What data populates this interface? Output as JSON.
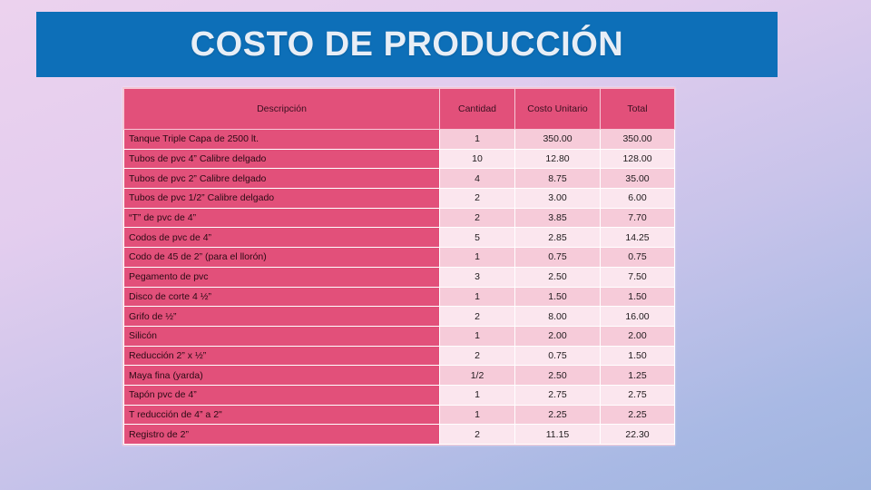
{
  "title": "COSTO DE PRODUCCIÓN",
  "table": {
    "headers": {
      "description": "Descripción",
      "quantity": "Cantidad",
      "unit_cost": "Costo Unitario",
      "total": "Total"
    },
    "rows": [
      {
        "description": "Tanque Triple Capa de 2500 lt.",
        "quantity": "1",
        "unit_cost": "350.00",
        "total": "350.00"
      },
      {
        "description": "Tubos de pvc 4” Calibre delgado",
        "quantity": "10",
        "unit_cost": "12.80",
        "total": "128.00"
      },
      {
        "description": "Tubos de pvc 2” Calibre delgado",
        "quantity": "4",
        "unit_cost": "8.75",
        "total": "35.00"
      },
      {
        "description": "Tubos de pvc 1/2” Calibre delgado",
        "quantity": "2",
        "unit_cost": "3.00",
        "total": "6.00"
      },
      {
        "description": "“T” de pvc de 4”",
        "quantity": "2",
        "unit_cost": "3.85",
        "total": "7.70"
      },
      {
        "description": "Codos de pvc de 4”",
        "quantity": "5",
        "unit_cost": "2.85",
        "total": "14.25"
      },
      {
        "description": "Codo de 45 de 2” (para el llorón)",
        "quantity": "1",
        "unit_cost": "0.75",
        "total": "0.75"
      },
      {
        "description": "Pegamento de pvc",
        "quantity": "3",
        "unit_cost": "2.50",
        "total": "7.50"
      },
      {
        "description": "Disco de corte 4 ½”",
        "quantity": "1",
        "unit_cost": "1.50",
        "total": "1.50"
      },
      {
        "description": "Grifo de ½”",
        "quantity": "2",
        "unit_cost": "8.00",
        "total": "16.00"
      },
      {
        "description": "Silicón",
        "quantity": "1",
        "unit_cost": "2.00",
        "total": "2.00"
      },
      {
        "description": "Reducción 2” x ½”",
        "quantity": "2",
        "unit_cost": "0.75",
        "total": "1.50"
      },
      {
        "description": "Maya fina (yarda)",
        "quantity": "1/2",
        "unit_cost": "2.50",
        "total": "1.25"
      },
      {
        "description": "Tapón pvc de 4”",
        "quantity": "1",
        "unit_cost": "2.75",
        "total": "2.75"
      },
      {
        "description": "T reducción de 4” a 2\"",
        "quantity": "1",
        "unit_cost": "2.25",
        "total": "2.25"
      },
      {
        "description": "Registro de 2”",
        "quantity": "2",
        "unit_cost": "11.15",
        "total": "22.30"
      }
    ]
  }
}
